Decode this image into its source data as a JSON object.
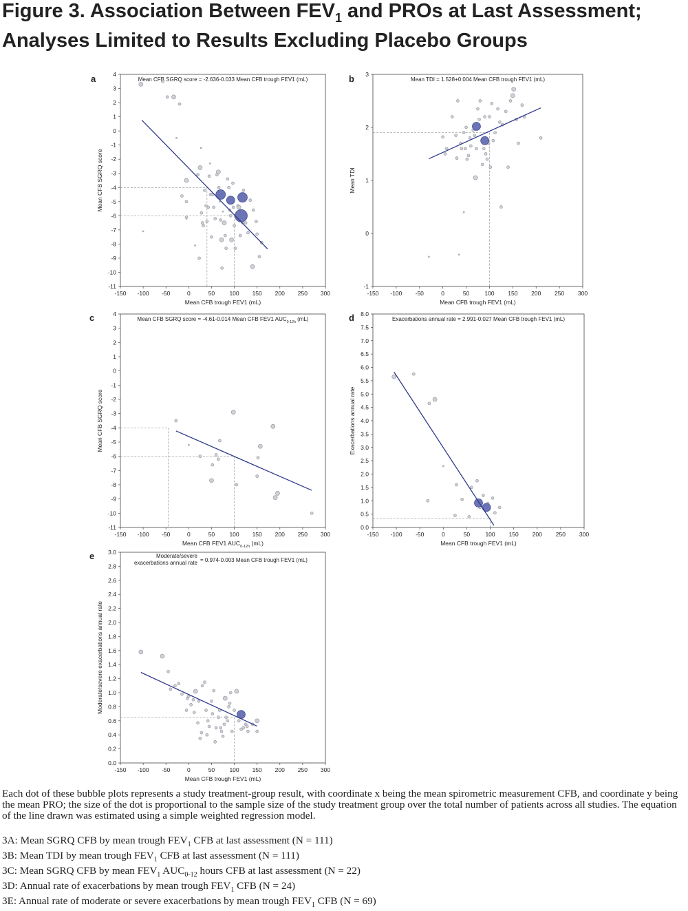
{
  "figure": {
    "title_pre": "Figure 3. Association Between FEV",
    "title_sub": "1",
    "title_post": " and PROs at Last Assessment; Analyses Limited to Results Excluding Placebo Groups"
  },
  "chart_data": [
    {
      "panel": "a",
      "type": "scatter",
      "equation": "Mean CFB SGRQ score = -2.636-0.033 Mean CFB trough FEV1 (mL)",
      "xlabel": "Mean CFB trough FEV1 (mL)",
      "ylabel": "Mean CFB SGRQ score",
      "xlim": [
        -150,
        300
      ],
      "ylim": [
        -11,
        4
      ],
      "xticks": [
        "-150",
        "-100",
        "-50",
        "0",
        "50",
        "100",
        "150",
        "200",
        "250",
        "300"
      ],
      "yticks": [
        "4",
        "3",
        "2",
        "1",
        "0",
        "-1",
        "-2",
        "-3",
        "-4",
        "-5",
        "-6",
        "-7",
        "-8",
        "-9",
        "-10",
        "-11"
      ],
      "regression": {
        "x": [
          -103,
          173
        ]
      },
      "refs": [
        {
          "x": 40,
          "y": -4
        },
        {
          "x": 100,
          "y": -6
        }
      ],
      "points": [
        [
          -105,
          3.3,
          3
        ],
        [
          -57,
          3.5,
          2
        ],
        [
          -47,
          2.4,
          2
        ],
        [
          -33,
          2.4,
          3
        ],
        [
          -20,
          1.9,
          2
        ],
        [
          -27,
          -0.5,
          1
        ],
        [
          -100,
          -7.1,
          1
        ],
        [
          -5,
          -3.5,
          3
        ],
        [
          -15,
          -4.6,
          2
        ],
        [
          -5,
          -5,
          2
        ],
        [
          -5,
          -6.1,
          2
        ],
        [
          -5,
          -6.2,
          1
        ],
        [
          20,
          -3.1,
          2
        ],
        [
          25,
          -2.6,
          3
        ],
        [
          27,
          -1.2,
          1
        ],
        [
          28,
          -5.8,
          2
        ],
        [
          30,
          -6.5,
          2
        ],
        [
          32,
          -6.7,
          2
        ],
        [
          35,
          -4.2,
          2
        ],
        [
          38,
          -5.3,
          2
        ],
        [
          40,
          -6.4,
          2
        ],
        [
          43,
          -5.4,
          2
        ],
        [
          45,
          -3.2,
          2
        ],
        [
          47,
          -2.3,
          1
        ],
        [
          48,
          -4.5,
          2
        ],
        [
          50,
          -7.5,
          2
        ],
        [
          52,
          -4.5,
          2
        ],
        [
          55,
          -5.4,
          2
        ],
        [
          58,
          -6.2,
          2
        ],
        [
          62,
          -3.1,
          2
        ],
        [
          65,
          -2.9,
          3
        ],
        [
          66,
          -4,
          2
        ],
        [
          68,
          -5,
          1
        ],
        [
          70,
          -6.3,
          2
        ],
        [
          72,
          -7.7,
          3
        ],
        [
          73,
          -9.7,
          2
        ],
        [
          75,
          -5.7,
          1
        ],
        [
          78,
          -6.5,
          3
        ],
        [
          80,
          -7.4,
          2
        ],
        [
          82,
          -8.3,
          2
        ],
        [
          85,
          -3.4,
          2
        ],
        [
          88,
          -4,
          2
        ],
        [
          90,
          -5.6,
          2
        ],
        [
          92,
          -6,
          2
        ],
        [
          94,
          -7.7,
          3
        ],
        [
          97,
          -3.7,
          2
        ],
        [
          98,
          -5.4,
          2
        ],
        [
          100,
          -6.7,
          2
        ],
        [
          102,
          -8.3,
          2
        ],
        [
          104,
          -6,
          2
        ],
        [
          108,
          -5.3,
          2
        ],
        [
          110,
          -5.4,
          3
        ],
        [
          113,
          -7.4,
          2
        ],
        [
          118,
          -6.5,
          2
        ],
        [
          120,
          -4.2,
          2
        ],
        [
          125,
          -6.5,
          2
        ],
        [
          130,
          -7.2,
          2
        ],
        [
          135,
          -4.9,
          2
        ],
        [
          140,
          -9.6,
          3
        ],
        [
          142,
          -5.6,
          2
        ],
        [
          148,
          -6.4,
          2
        ],
        [
          150,
          -7.3,
          2
        ],
        [
          155,
          -8.9,
          2
        ],
        [
          160,
          -7.9,
          2
        ],
        [
          23,
          -9,
          2
        ],
        [
          14,
          -8.1,
          1
        ],
        [
          70,
          -4.5,
          7
        ],
        [
          92,
          -4.9,
          6
        ],
        [
          115,
          -6,
          9
        ],
        [
          118,
          -4.7,
          7
        ]
      ]
    },
    {
      "panel": "b",
      "type": "scatter",
      "equation": "Mean TDI = 1.528+0.004 Mean CFB trough FEV1 (mL)",
      "xlabel": "Mean CFB trough FEV1 (mL)",
      "ylabel": "Mean TDI",
      "xlim": [
        -150,
        300
      ],
      "ylim": [
        -1,
        3
      ],
      "xticks": [
        "-150",
        "-100",
        "-50",
        "0",
        "50",
        "100",
        "150",
        "200",
        "250",
        "300"
      ],
      "yticks": [
        "3",
        "2",
        "1",
        "0",
        "-1"
      ],
      "regression": {
        "x": [
          -30,
          210
        ]
      },
      "refs": [
        {
          "x": 100,
          "y": 1.9
        }
      ],
      "points": [
        [
          -30,
          -0.44,
          1
        ],
        [
          0,
          1.82,
          2
        ],
        [
          5,
          1.5,
          2
        ],
        [
          8,
          1.6,
          2
        ],
        [
          20,
          2.2,
          2
        ],
        [
          28,
          1.85,
          2
        ],
        [
          30,
          1.42,
          2
        ],
        [
          32,
          2.5,
          2
        ],
        [
          35,
          -0.4,
          1
        ],
        [
          38,
          1.7,
          2
        ],
        [
          40,
          1.6,
          2
        ],
        [
          45,
          1.9,
          2
        ],
        [
          48,
          1.6,
          2
        ],
        [
          50,
          2.0,
          2
        ],
        [
          52,
          1.4,
          2
        ],
        [
          55,
          1.47,
          2
        ],
        [
          58,
          1.8,
          2
        ],
        [
          60,
          1.65,
          2
        ],
        [
          65,
          1.95,
          2
        ],
        [
          68,
          1.85,
          2
        ],
        [
          70,
          1.05,
          3
        ],
        [
          72,
          1.6,
          2
        ],
        [
          75,
          2.35,
          2
        ],
        [
          78,
          2.15,
          2
        ],
        [
          80,
          2.5,
          2
        ],
        [
          85,
          1.3,
          2
        ],
        [
          88,
          1.6,
          2
        ],
        [
          90,
          2.2,
          2
        ],
        [
          92,
          1.5,
          2
        ],
        [
          95,
          1.4,
          2
        ],
        [
          98,
          1.7,
          2
        ],
        [
          100,
          2.2,
          2
        ],
        [
          102,
          1.25,
          2
        ],
        [
          105,
          2.45,
          2
        ],
        [
          108,
          1.75,
          2
        ],
        [
          112,
          1.9,
          2
        ],
        [
          118,
          2.35,
          2
        ],
        [
          122,
          2.1,
          2
        ],
        [
          125,
          0.5,
          2
        ],
        [
          128,
          2.05,
          2
        ],
        [
          135,
          2.3,
          2
        ],
        [
          140,
          1.25,
          2
        ],
        [
          145,
          2.5,
          2
        ],
        [
          150,
          2.6,
          3
        ],
        [
          152,
          2.72,
          3
        ],
        [
          158,
          2.15,
          2
        ],
        [
          162,
          1.7,
          2
        ],
        [
          170,
          2.42,
          2
        ],
        [
          175,
          2.2,
          2
        ],
        [
          210,
          1.8,
          2
        ],
        [
          45,
          0.4,
          1
        ],
        [
          72,
          2.02,
          6
        ],
        [
          90,
          1.75,
          6
        ]
      ]
    },
    {
      "panel": "c",
      "type": "scatter",
      "equation_pre": "Mean CFB SGRQ score = -4.61-0.014 Mean CFB FEV1 AUC",
      "equation_sub": "0-12h",
      "equation_post": " (mL)",
      "xlabel_pre": "Mean CFB FEV1 AUC",
      "xlabel_sub": "0-12h",
      "xlabel_post": " (mL)",
      "ylabel": "Mean CFB SGRQ score",
      "xlim": [
        -150,
        300
      ],
      "ylim": [
        -11,
        4
      ],
      "xticks": [
        "-150",
        "-100",
        "-50",
        "0",
        "50",
        "100",
        "150",
        "200",
        "250",
        "300"
      ],
      "yticks": [
        "4",
        "3",
        "2",
        "1",
        "0",
        "-1",
        "-2",
        "-3",
        "-4",
        "-5",
        "-6",
        "-7",
        "-8",
        "-9",
        "-10",
        "-11"
      ],
      "regression": {
        "x": [
          -28,
          270
        ]
      },
      "refs": [
        {
          "x": -45,
          "y": -4
        },
        {
          "x": 100,
          "y": -6
        }
      ],
      "points": [
        [
          -28,
          -3.5,
          2
        ],
        [
          0,
          -5.2,
          1
        ],
        [
          25,
          -6,
          2
        ],
        [
          50,
          -7.7,
          3
        ],
        [
          52,
          -6.6,
          2
        ],
        [
          60,
          -5.9,
          2
        ],
        [
          65,
          -6.2,
          2
        ],
        [
          68,
          -4.9,
          2
        ],
        [
          98,
          -2.9,
          3
        ],
        [
          105,
          -8,
          2
        ],
        [
          150,
          -7.4,
          2
        ],
        [
          152,
          -6.1,
          2
        ],
        [
          157,
          -5.3,
          3
        ],
        [
          185,
          -3.9,
          3
        ],
        [
          190,
          -8.9,
          3
        ],
        [
          195,
          -8.6,
          3
        ],
        [
          270,
          -10,
          2
        ]
      ]
    },
    {
      "panel": "d",
      "type": "scatter",
      "equation": "Exacerbations annual rate = 2.991-0.027 Mean CFB trough FEV1 (mL)",
      "xlabel": "Mean CFB trough FEV1 (mL)",
      "ylabel": "Exacerbations annual rate",
      "xlim": [
        -150,
        300
      ],
      "ylim": [
        0,
        8
      ],
      "xticks": [
        "-150",
        "-100",
        "-50",
        "0",
        "50",
        "100",
        "150",
        "200",
        "250",
        "300"
      ],
      "yticks": [
        "8.0",
        "7.5",
        "7.0",
        "6.5",
        "6.0",
        "5.5",
        "5.0",
        "4.5",
        "4.0",
        "3.5",
        "3.0",
        "2.5",
        "2.0",
        "1.5",
        "1.0",
        "0.5",
        "0.0"
      ],
      "regression": {
        "x": [
          -105,
          108
        ]
      },
      "refs": [
        {
          "x": 100,
          "y": 0.35
        }
      ],
      "points": [
        [
          -105,
          5.65,
          3
        ],
        [
          -63,
          5.75,
          2
        ],
        [
          -30,
          4.65,
          2
        ],
        [
          -18,
          4.8,
          3
        ],
        [
          -33,
          1.0,
          2
        ],
        [
          0,
          2.3,
          1
        ],
        [
          25,
          0.45,
          2
        ],
        [
          28,
          1.6,
          2
        ],
        [
          40,
          1.05,
          2
        ],
        [
          55,
          0.4,
          2
        ],
        [
          60,
          1.5,
          2
        ],
        [
          72,
          1.75,
          2
        ],
        [
          78,
          0.75,
          2
        ],
        [
          85,
          1.2,
          2
        ],
        [
          95,
          0.9,
          2
        ],
        [
          105,
          1.1,
          2
        ],
        [
          110,
          0.55,
          2
        ],
        [
          120,
          0.75,
          2
        ],
        [
          75,
          0.92,
          6
        ],
        [
          92,
          0.75,
          6
        ]
      ]
    },
    {
      "panel": "e",
      "type": "scatter",
      "equation_label": "Moderate/severe exacerbations annual rate",
      "equation_rhs": "= 0.974-0.003 Mean CFB trough FEV1 (mL)",
      "xlabel": "Mean CFB trough FEV1 (mL)",
      "ylabel": "Moderate/severe exacerbations annual rate",
      "xlim": [
        -150,
        300
      ],
      "ylim": [
        0,
        3
      ],
      "xticks": [
        "-150",
        "-100",
        "-50",
        "0",
        "50",
        "100",
        "150",
        "200",
        "250",
        "300"
      ],
      "yticks": [
        "3.0",
        "2.8",
        "2.6",
        "2.4",
        "2.2",
        "2.0",
        "1.8",
        "1.6",
        "1.4",
        "1.2",
        "1.0",
        "0.8",
        "0.6",
        "0.4",
        "0.2",
        "0.0"
      ],
      "regression": {
        "x": [
          -105,
          150
        ]
      },
      "refs": [
        {
          "x": 100,
          "y": 0.65
        }
      ],
      "points": [
        [
          -105,
          1.58,
          3
        ],
        [
          -58,
          1.52,
          3
        ],
        [
          -45,
          1.3,
          2
        ],
        [
          -40,
          1.05,
          2
        ],
        [
          -30,
          1.1,
          2
        ],
        [
          -22,
          1.13,
          2
        ],
        [
          -15,
          0.98,
          2
        ],
        [
          -5,
          0.75,
          2
        ],
        [
          -3,
          0.92,
          2
        ],
        [
          0,
          0.95,
          2
        ],
        [
          5,
          0.83,
          2
        ],
        [
          10,
          0.9,
          2
        ],
        [
          12,
          0.72,
          2
        ],
        [
          15,
          1.02,
          3
        ],
        [
          20,
          0.57,
          2
        ],
        [
          22,
          0.88,
          2
        ],
        [
          25,
          0.35,
          2
        ],
        [
          28,
          0.43,
          2
        ],
        [
          30,
          1.1,
          2
        ],
        [
          35,
          1.15,
          2
        ],
        [
          38,
          0.75,
          2
        ],
        [
          40,
          0.4,
          2
        ],
        [
          42,
          0.6,
          2
        ],
        [
          45,
          0.52,
          2
        ],
        [
          50,
          0.88,
          2
        ],
        [
          52,
          0.7,
          2
        ],
        [
          55,
          1.03,
          2
        ],
        [
          58,
          0.3,
          2
        ],
        [
          60,
          0.5,
          2
        ],
        [
          65,
          0.65,
          2
        ],
        [
          68,
          0.75,
          2
        ],
        [
          70,
          0.5,
          2
        ],
        [
          72,
          0.45,
          2
        ],
        [
          75,
          0.38,
          2
        ],
        [
          78,
          0.55,
          2
        ],
        [
          80,
          0.92,
          3
        ],
        [
          82,
          0.65,
          2
        ],
        [
          85,
          0.6,
          2
        ],
        [
          88,
          0.8,
          2
        ],
        [
          90,
          0.85,
          2
        ],
        [
          92,
          1.0,
          2
        ],
        [
          95,
          0.45,
          2
        ],
        [
          100,
          0.75,
          2
        ],
        [
          105,
          1.02,
          3
        ],
        [
          110,
          0.6,
          2
        ],
        [
          115,
          0.48,
          2
        ],
        [
          120,
          0.5,
          2
        ],
        [
          125,
          0.55,
          2
        ],
        [
          128,
          0.52,
          2
        ],
        [
          130,
          0.45,
          2
        ],
        [
          140,
          0.55,
          2
        ],
        [
          150,
          0.45,
          2
        ],
        [
          150,
          0.6,
          3
        ],
        [
          115,
          0.69,
          6
        ]
      ]
    }
  ],
  "caption": "Each dot of these bubble plots represents a study treatment-group result, with coordinate x being the mean spirometric measurement CFB, and coordinate y being the mean PRO; the size of the dot is proportional to the sample size of the study treatment group over the total number of patients across all studies. The equation of the line drawn was estimated using a simple weighted regression model.",
  "notes": {
    "a_pre": "3A: Mean SGRQ CFB by mean trough FEV",
    "a_sub": "1",
    "a_post": " CFB at last assessment (N = 111)",
    "b_pre": "3B: Mean TDI by mean trough FEV",
    "b_sub": "1",
    "b_post": " CFB at last assessment (N = 111)",
    "c_pre": "3C: Mean SGRQ CFB by mean FEV",
    "c_sub1": "1",
    "c_mid": " AUC",
    "c_sub2": "0-12",
    "c_post": " hours CFB at last assessment (N = 22)",
    "d_pre": "3D: Annual rate of exacerbations by mean trough FEV",
    "d_sub": "1",
    "d_post": " CFB (N = 24)",
    "e_pre": "3E: Annual rate of moderate or severe exacerbations by mean trough FEV",
    "e_sub": "1",
    "e_post": " CFB (N = 69)"
  },
  "colors": {
    "line": "#303a8a",
    "point_fill": "#d0d0d6",
    "point_stroke": "#9a9aa6",
    "big_fill": "#6b74b5",
    "big_stroke": "#3a4590",
    "ref": "#999999"
  }
}
